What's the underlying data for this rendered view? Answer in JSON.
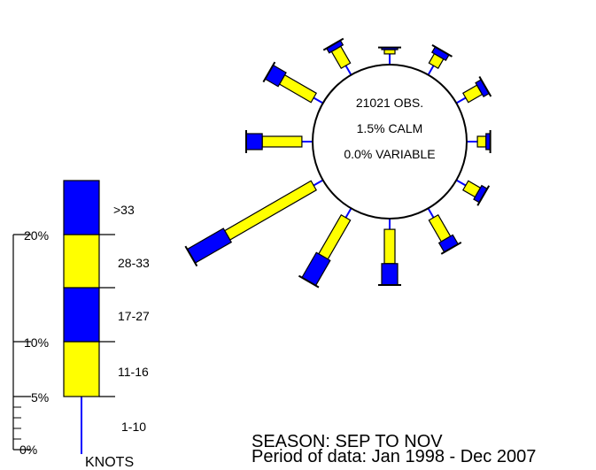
{
  "colors": {
    "light_wind": "#ffff00",
    "strong_wind": "#0000ff",
    "spoke": "#0000ff",
    "outline": "#000000"
  },
  "center": {
    "observations": "21021 OBS.",
    "calm": "1.5% CALM",
    "variable": "0.0% VARIABLE"
  },
  "footer": {
    "season": "SEASON: SEP TO NOV",
    "period": "Period of data: Jan 1998 - Dec 2007"
  },
  "legend": {
    "scale_ticks": [
      "0%",
      "5%",
      "10%",
      "20%"
    ],
    "speed_classes": [
      "1-10",
      "11-16",
      "17-27",
      "28-33",
      ">33"
    ],
    "unit": "KNOTS"
  },
  "chart_data": {
    "type": "wind-rose",
    "directions": [
      0,
      30,
      60,
      90,
      120,
      150,
      180,
      210,
      240,
      270,
      300,
      330
    ],
    "units": "percent of observations",
    "speed_classes": [
      "1-10",
      "11-16",
      "17-27",
      "28-33",
      ">33"
    ],
    "frequencies": [
      [
        1.0,
        0.4,
        0.2,
        0.0,
        0.0
      ],
      [
        1.0,
        1.0,
        0.6,
        0.0,
        0.0
      ],
      [
        1.0,
        1.5,
        0.6,
        0.0,
        0.0
      ],
      [
        1.0,
        0.8,
        0.4,
        0.0,
        0.0
      ],
      [
        1.0,
        1.3,
        0.6,
        0.0,
        0.0
      ],
      [
        1.0,
        2.3,
        1.0,
        0.0,
        0.0
      ],
      [
        1.0,
        3.2,
        2.0,
        0.0,
        0.0
      ],
      [
        1.0,
        4.2,
        2.7,
        0.0,
        0.0
      ],
      [
        1.0,
        9.3,
        3.9,
        0.0,
        0.0
      ],
      [
        1.0,
        3.7,
        1.5,
        0.0,
        0.0
      ],
      [
        1.0,
        3.4,
        1.4,
        0.0,
        0.0
      ],
      [
        1.0,
        1.8,
        0.5,
        0.0,
        0.0
      ]
    ]
  }
}
